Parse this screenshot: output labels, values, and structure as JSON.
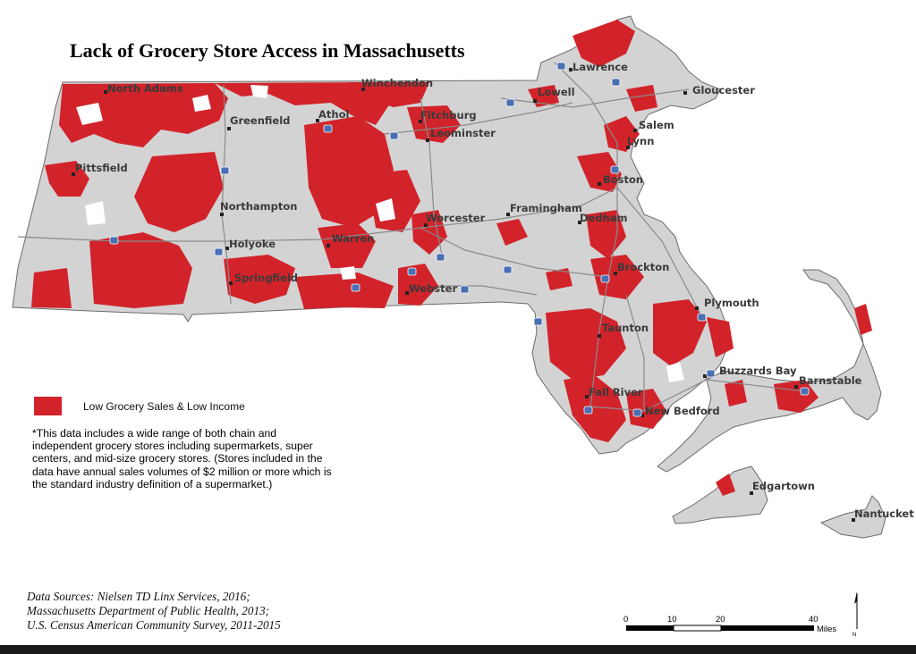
{
  "title": "Lack of Grocery Store Access in Massachusetts",
  "colors": {
    "low_access": "#d2232a",
    "land": "#d3d3d4",
    "town_border": "#f6f6f6",
    "road": "#8a8a8a",
    "water": "#ffffff",
    "outline": "#6b6b6b"
  },
  "legend": {
    "label": "Low Grocery Sales & Low Income"
  },
  "note": "*This data includes a wide range of both chain and independent grocery stores including supermarkets, super centers, and mid-size grocery stores. (Stores included in the data have annual sales volumes of $2 million or more which is the standard industry definition of a supermarket.)",
  "sources": [
    "Data Sources: Nielsen TD Linx Services, 2016;",
    "Massachusetts Department of Public Health, 2013;",
    "U.S. Census American Community Survey, 2011-2015"
  ],
  "cities": [
    "North Adams",
    "Winchendon",
    "Lawrence",
    "Lowell",
    "Gloucester",
    "Greenfield",
    "Athol",
    "Fitchburg",
    "Leominster",
    "Salem",
    "Lynn",
    "Pittsfield",
    "Boston",
    "Northampton",
    "Worcester",
    "Framingham",
    "Dedham",
    "Holyoke",
    "Warren",
    "Springfield",
    "Webster",
    "Brockton",
    "Plymouth",
    "Taunton",
    "Buzzards Bay",
    "Barnstable",
    "Fall River",
    "New Bedford",
    "Edgartown",
    "Nantucket"
  ],
  "scale": {
    "ticks": [
      "0",
      "10",
      "20",
      "40"
    ],
    "unit": "Miles"
  },
  "north_arrow": "N"
}
